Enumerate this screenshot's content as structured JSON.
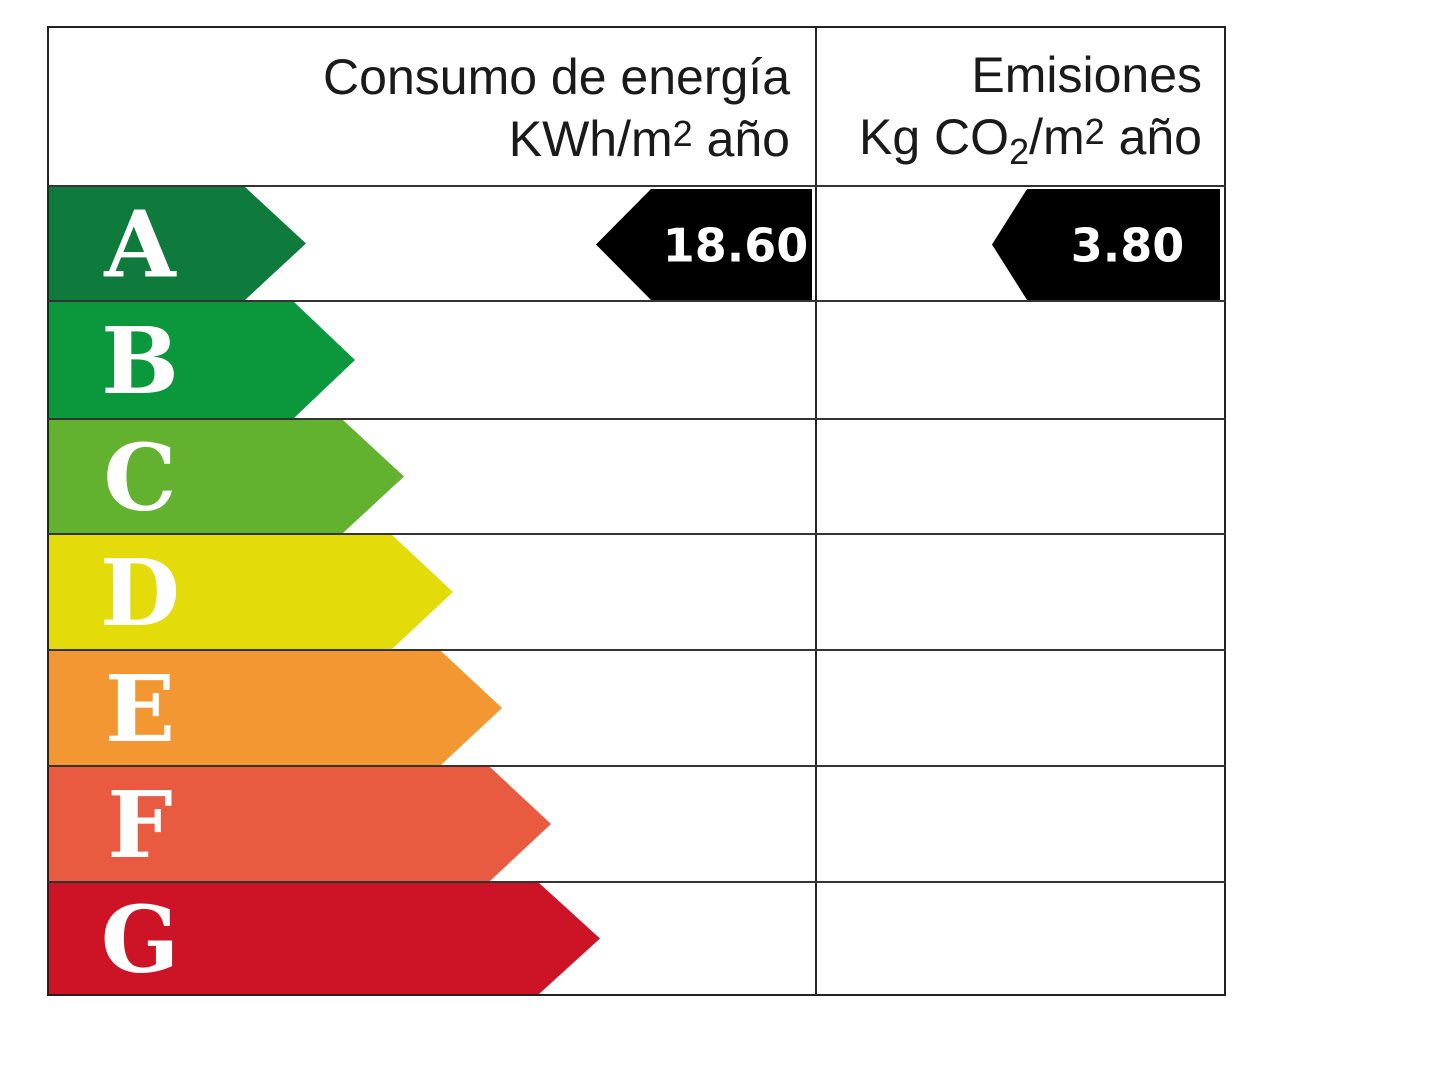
{
  "header": {
    "energy_title": "Consumo de energía",
    "energy_unit_prefix": "KWh/m",
    "energy_unit_exp": "2",
    "energy_unit_suffix": " año",
    "emissions_title": "Emisiones",
    "emissions_unit_prefix": "Kg CO",
    "emissions_unit_sub": "2",
    "emissions_unit_mid": "/m",
    "emissions_unit_exp": "2",
    "emissions_unit_suffix": " año"
  },
  "classes": [
    {
      "letter": "A",
      "color": "#0e7a3c"
    },
    {
      "letter": "B",
      "color": "#0b983d"
    },
    {
      "letter": "C",
      "color": "#63b22f"
    },
    {
      "letter": "D",
      "color": "#e3dc0a"
    },
    {
      "letter": "E",
      "color": "#f39732"
    },
    {
      "letter": "F",
      "color": "#e95b41"
    },
    {
      "letter": "G",
      "color": "#cd1427"
    }
  ],
  "ratings": {
    "energy": {
      "class": "A",
      "value": "18.60"
    },
    "emissions": {
      "class": "A",
      "value": "3.80"
    }
  }
}
